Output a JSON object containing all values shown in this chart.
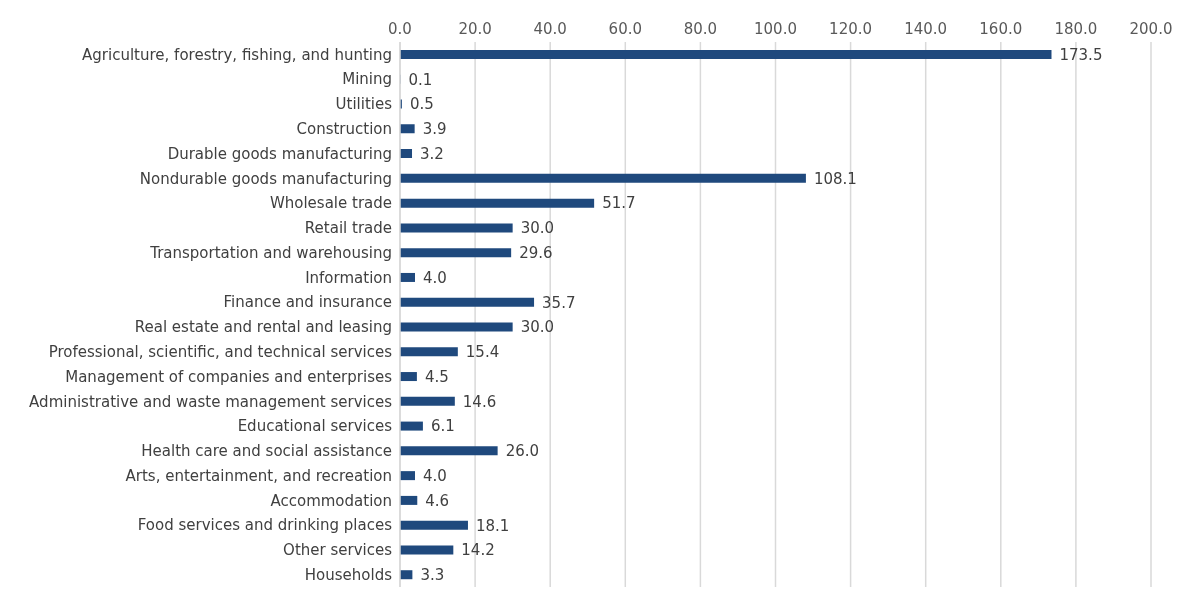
{
  "chart_data": {
    "type": "bar",
    "orientation": "horizontal",
    "categories": [
      "Agriculture, forestry, fishing, and hunting",
      "Mining",
      "Utilities",
      "Construction",
      "Durable goods manufacturing",
      "Nondurable goods manufacturing",
      "Wholesale trade",
      "Retail trade",
      "Transportation and warehousing",
      "Information",
      "Finance and insurance",
      "Real estate and rental and leasing",
      "Professional, scientific, and technical services",
      "Management of companies and enterprises",
      "Administrative and waste management services",
      "Educational services",
      "Health care and social assistance",
      "Arts, entertainment, and recreation",
      "Accommodation",
      "Food services and drinking places",
      "Other services",
      "Households"
    ],
    "values": [
      173.5,
      0.1,
      0.5,
      3.9,
      3.2,
      108.1,
      51.7,
      30.0,
      29.6,
      4.0,
      35.7,
      30.0,
      15.4,
      4.5,
      14.6,
      6.1,
      26.0,
      4.0,
      4.6,
      18.1,
      14.2,
      3.3
    ],
    "value_labels": [
      "173.5",
      "0.1",
      "0.5",
      "3.9",
      "3.2",
      "108.1",
      "51.7",
      "30.0",
      "29.6",
      "4.0",
      "35.7",
      "30.0",
      "15.4",
      "4.5",
      "14.6",
      "6.1",
      "26.0",
      "4.0",
      "4.6",
      "18.1",
      "14.2",
      "3.3"
    ],
    "color": "#1f497d",
    "xlim": [
      0,
      200
    ],
    "xticks": [
      {
        "value": 0,
        "label": "0.0"
      },
      {
        "value": 20,
        "label": "20.0"
      },
      {
        "value": 40,
        "label": "40.0"
      },
      {
        "value": 60,
        "label": "60.0"
      },
      {
        "value": 80,
        "label": "80.0"
      },
      {
        "value": 100,
        "label": "100.0"
      },
      {
        "value": 120,
        "label": "120.0"
      },
      {
        "value": 140,
        "label": "140.0"
      },
      {
        "value": 160,
        "label": "160.0"
      },
      {
        "value": 180,
        "label": "180.0"
      },
      {
        "value": 200,
        "label": "200.0"
      }
    ],
    "grid": "x",
    "legend": false
  }
}
